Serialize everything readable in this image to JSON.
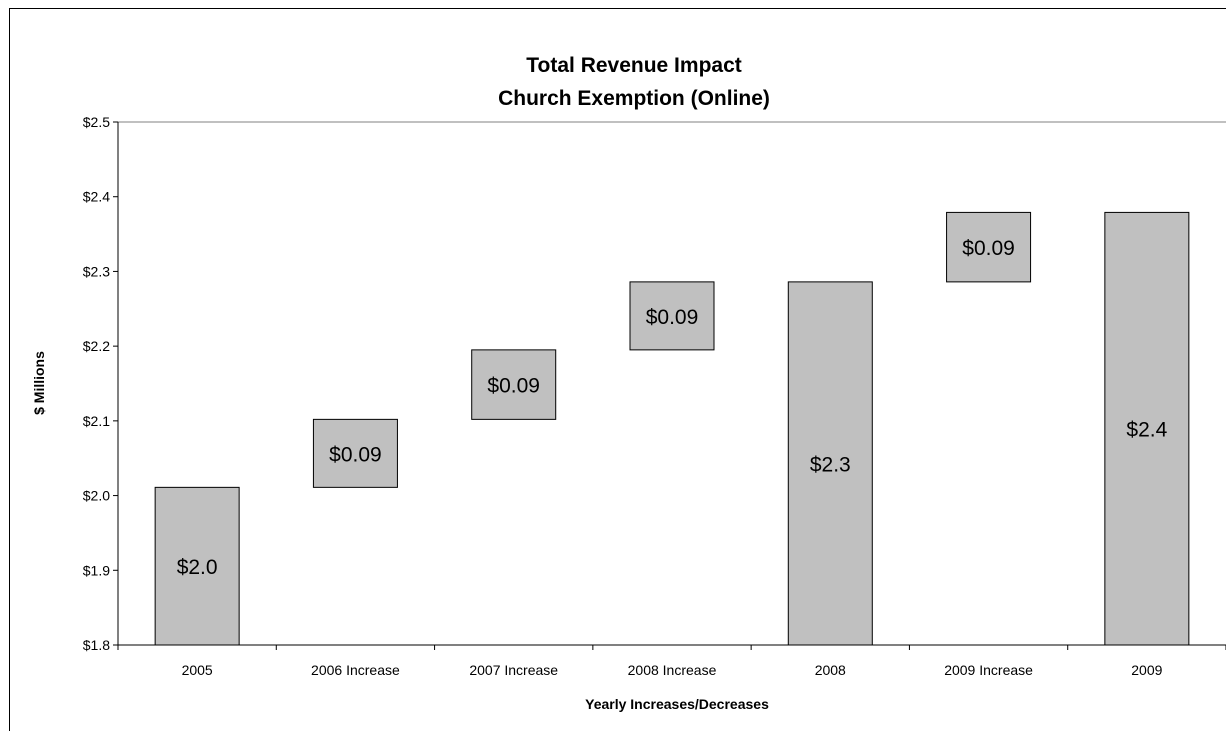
{
  "chart_data": {
    "type": "bar",
    "subtype": "waterfall",
    "title": "Total Revenue Impact",
    "subtitle": "Church Exemption (Online)",
    "xlabel": "Yearly Increases/Decreases",
    "ylabel": "$ Millions",
    "ylim": [
      1.8,
      2.5
    ],
    "yticks": [
      "$1.8",
      "$1.9",
      "$2.0",
      "$2.1",
      "$2.2",
      "$2.3",
      "$2.4",
      "$2.5"
    ],
    "grid": false,
    "categories": [
      "2005",
      "2006 Increase",
      "2007 Increase",
      "2008 Increase",
      "2008",
      "2009 Increase",
      "2009"
    ],
    "bars": [
      {
        "category": "2005",
        "base": 1.8,
        "top": 2.011,
        "label": "$2.0"
      },
      {
        "category": "2006 Increase",
        "base": 2.011,
        "top": 2.102,
        "label": "$0.09"
      },
      {
        "category": "2007 Increase",
        "base": 2.102,
        "top": 2.195,
        "label": "$0.09"
      },
      {
        "category": "2008 Increase",
        "base": 2.195,
        "top": 2.286,
        "label": "$0.09"
      },
      {
        "category": "2008",
        "base": 1.8,
        "top": 2.286,
        "label": "$2.3"
      },
      {
        "category": "2009 Increase",
        "base": 2.286,
        "top": 2.379,
        "label": "$0.09"
      },
      {
        "category": "2009",
        "base": 1.8,
        "top": 2.379,
        "label": "$2.4"
      }
    ],
    "colors": {
      "bar_fill": "#c0c0c0",
      "bar_stroke": "#000000"
    }
  }
}
